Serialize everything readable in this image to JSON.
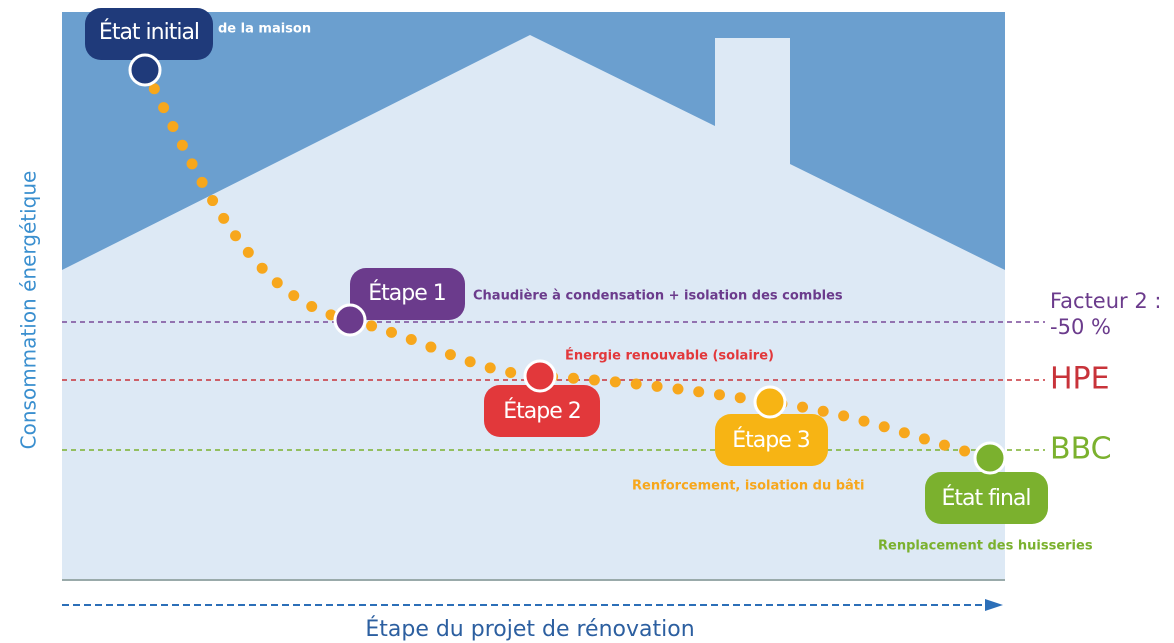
{
  "y_axis_label": "Consommation énergétique",
  "x_axis_label": "Étape du projet de rénovation",
  "stages": [
    {
      "label": "État initial",
      "description": "de la maison"
    },
    {
      "label": "Étape 1",
      "description": "Chaudière à condensation + isolation des combles"
    },
    {
      "label": "Étape 2",
      "description": "Énergie renouvable (solaire)"
    },
    {
      "label": "Étape 3",
      "description": "Renforcement, isolation du bâti"
    },
    {
      "label": "État final",
      "description": "Renplacement des huisseries"
    }
  ],
  "levels": [
    {
      "label": "Facteur 2 :",
      "sublabel": "-50 %"
    },
    {
      "label": "HPE"
    },
    {
      "label": "BBC"
    }
  ]
}
